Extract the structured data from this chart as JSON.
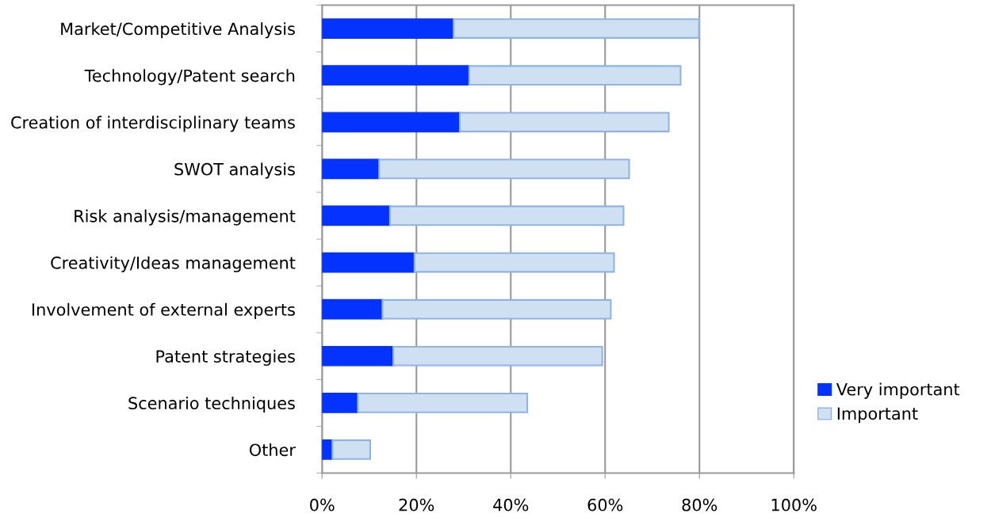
{
  "chart_data": {
    "type": "bar",
    "orientation": "horizontal",
    "stacked": true,
    "categories": [
      "Market/Competitive Analysis",
      "Technology/Patent search",
      "Creation of interdisciplinary teams",
      "SWOT analysis",
      "Risk analysis/management",
      "Creativity/Ideas management",
      "Involvement of external experts",
      "Patent strategies",
      "Scenario techniques",
      "Other"
    ],
    "series": [
      {
        "name": "Very important",
        "color": "#0433ff",
        "values": [
          27.9,
          31.2,
          29.2,
          12.1,
          14.4,
          19.6,
          12.8,
          15.1,
          7.6,
          2.2
        ]
      },
      {
        "name": "Important",
        "color": "#d0e0f3",
        "values": [
          52.0,
          44.8,
          44.3,
          53.0,
          49.5,
          42.3,
          48.4,
          44.3,
          35.9,
          8.0
        ]
      }
    ],
    "xlim": [
      0,
      100
    ],
    "xticks": [
      {
        "value": 0,
        "label": "0%"
      },
      {
        "value": 20,
        "label": "20%"
      },
      {
        "value": 40,
        "label": "40%"
      },
      {
        "value": 60,
        "label": "60%"
      },
      {
        "value": 80,
        "label": "80%"
      },
      {
        "value": 100,
        "label": "100%"
      }
    ],
    "grid": "x",
    "legend": "right"
  }
}
